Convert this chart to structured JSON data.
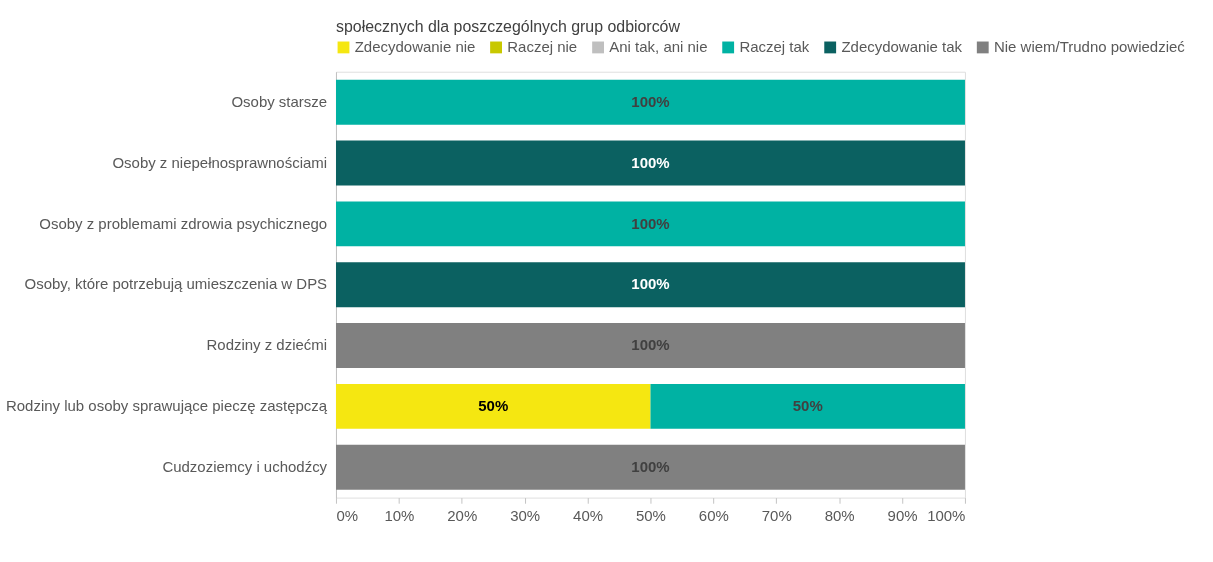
{
  "chart_data": {
    "type": "bar",
    "orientation": "horizontal",
    "stacked": true,
    "title": "społecznych dla poszczególnych grup odbiorców",
    "categories": [
      "Osoby starsze",
      "Osoby z niepełnosprawnościami",
      "Osoby z problemami zdrowia psychicznego",
      "Osoby, które potrzebują umieszczenia w DPS",
      "Rodziny z dziećmi",
      "Rodziny lub osoby sprawujące pieczę zastępczą",
      "Cudzoziemcy i uchodźcy"
    ],
    "series": [
      {
        "name": "Zdecydowanie nie",
        "color": "#f5e711",
        "values": [
          null,
          null,
          null,
          null,
          null,
          50,
          null
        ],
        "value_labels": [
          null,
          null,
          null,
          null,
          null,
          "50%",
          null
        ]
      },
      {
        "name": "Raczej nie",
        "color": "#c8c800",
        "values": [
          null,
          null,
          null,
          null,
          null,
          null,
          null
        ],
        "value_labels": [
          null,
          null,
          null,
          null,
          null,
          null,
          null
        ]
      },
      {
        "name": "Ani tak, ani nie",
        "color": "#bfbfbf",
        "values": [
          null,
          null,
          null,
          null,
          null,
          null,
          null
        ],
        "value_labels": [
          null,
          null,
          null,
          null,
          null,
          null,
          null
        ]
      },
      {
        "name": "Raczej tak",
        "color": "#00b2a3",
        "values": [
          100,
          null,
          100,
          null,
          null,
          50,
          null
        ],
        "value_labels": [
          "100%",
          null,
          "100%",
          null,
          null,
          "50%",
          null
        ]
      },
      {
        "name": "Zdecydowanie tak",
        "color": "#0b6161",
        "values": [
          null,
          100,
          null,
          100,
          null,
          null,
          null
        ],
        "value_labels": [
          null,
          "100%",
          null,
          "100%",
          null,
          null,
          null
        ]
      },
      {
        "name": "Nie wiem/Trudno powiedzieć",
        "color": "#808080",
        "values": [
          null,
          null,
          null,
          null,
          100,
          null,
          100
        ],
        "value_labels": [
          null,
          null,
          null,
          null,
          "100%",
          null,
          "100%"
        ]
      }
    ],
    "xlim": [
      0,
      100
    ],
    "xticks": [
      {
        "value": 0,
        "label": "0%"
      },
      {
        "value": 10,
        "label": "10%"
      },
      {
        "value": 20,
        "label": "20%"
      },
      {
        "value": 30,
        "label": "30%"
      },
      {
        "value": 40,
        "label": "40%"
      },
      {
        "value": 50,
        "label": "50%"
      },
      {
        "value": 60,
        "label": "60%"
      },
      {
        "value": 70,
        "label": "70%"
      },
      {
        "value": 80,
        "label": "80%"
      },
      {
        "value": 90,
        "label": "90%"
      },
      {
        "value": 100,
        "label": "100%"
      }
    ],
    "grid": false,
    "legend": "top"
  }
}
